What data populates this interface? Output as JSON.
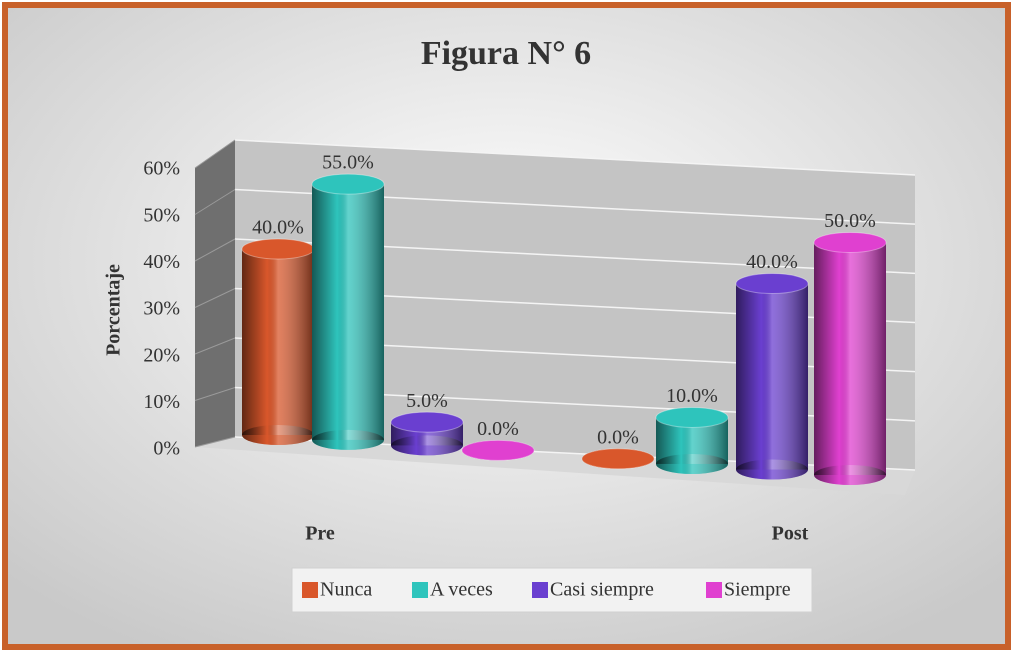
{
  "chart_data": {
    "type": "bar3d",
    "title": "Figura N° 6",
    "ylabel": "Porcentaje",
    "categories": [
      "Pre",
      "Post"
    ],
    "series": [
      {
        "name": "Nunca",
        "color": "#d9572b",
        "values": [
          40,
          0
        ],
        "value_labels": [
          "40.0%",
          "0.0%"
        ]
      },
      {
        "name": "A veces",
        "color": "#2ec4bc",
        "values": [
          55,
          10
        ],
        "value_labels": [
          "55.0%",
          "10.0%"
        ]
      },
      {
        "name": "Casi siempre",
        "color": "#6a3fd0",
        "values": [
          5,
          40
        ],
        "value_labels": [
          "5.0%",
          "40.0%"
        ]
      },
      {
        "name": "Siempre",
        "color": "#e040d0",
        "values": [
          0,
          50
        ],
        "value_labels": [
          "0.0%",
          "50.0%"
        ]
      }
    ],
    "ylim": [
      0,
      60
    ],
    "yticks": [
      {
        "value": 0,
        "label": "0%"
      },
      {
        "value": 10,
        "label": "10%"
      },
      {
        "value": 20,
        "label": "20%"
      },
      {
        "value": 30,
        "label": "30%"
      },
      {
        "value": 40,
        "label": "40%"
      },
      {
        "value": 50,
        "label": "50%"
      },
      {
        "value": 60,
        "label": "60%"
      }
    ],
    "grid": true
  }
}
